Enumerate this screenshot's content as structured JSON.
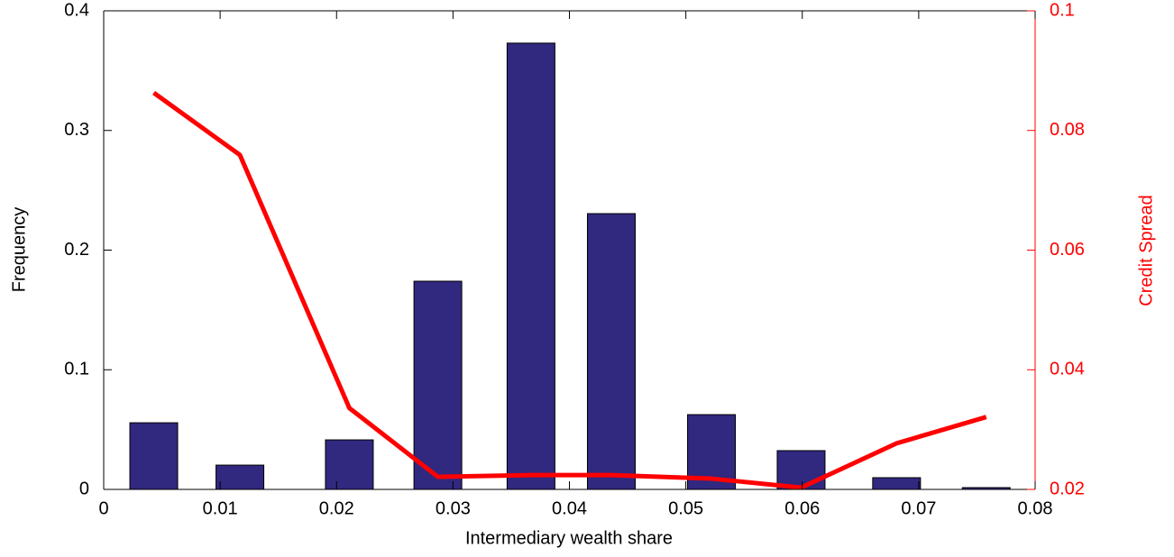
{
  "chart_data": {
    "type": "bar",
    "xlabel": "Intermediary wealth share",
    "ylabel": "Frequency",
    "y2label": "Credit Spread",
    "x": [
      0.0043,
      0.0117,
      0.0211,
      0.0287,
      0.0367,
      0.0436,
      0.0522,
      0.0599,
      0.0681,
      0.0758
    ],
    "series": [
      {
        "type": "bar",
        "color": "#31287f",
        "values": [
          0.0557,
          0.0203,
          0.0414,
          0.174,
          0.373,
          0.2305,
          0.0625,
          0.0324,
          0.0098,
          0.0015
        ]
      },
      {
        "type": "line",
        "color": "#ff0000",
        "axis": "y2",
        "values": [
          0.0863,
          0.0759,
          0.0336,
          0.0221,
          0.0224,
          0.0224,
          0.0218,
          0.0203,
          0.0277,
          0.0321
        ]
      }
    ],
    "xlim": [
      0,
      0.08
    ],
    "xticks": [
      0,
      0.01,
      0.02,
      0.03,
      0.04,
      0.05,
      0.06,
      0.07,
      0.08
    ],
    "ylim": [
      0,
      0.4
    ],
    "yticks": [
      0,
      0.1,
      0.2,
      0.3,
      0.4
    ],
    "y2lim": [
      0.02,
      0.1
    ],
    "y2ticks": [
      0.02,
      0.04,
      0.06,
      0.08,
      0.1
    ],
    "y2color": "#ff0000"
  }
}
